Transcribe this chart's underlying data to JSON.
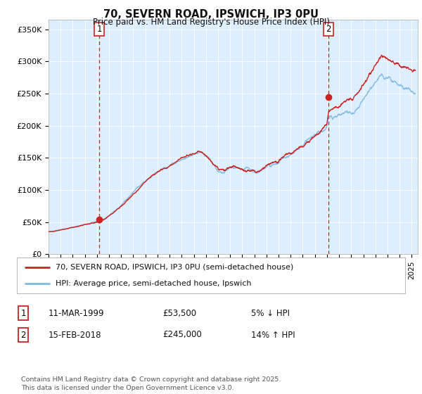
{
  "title": "70, SEVERN ROAD, IPSWICH, IP3 0PU",
  "subtitle": "Price paid vs. HM Land Registry's House Price Index (HPI)",
  "ylabel_ticks": [
    "£0",
    "£50K",
    "£100K",
    "£150K",
    "£200K",
    "£250K",
    "£300K",
    "£350K"
  ],
  "ytick_values": [
    0,
    50000,
    100000,
    150000,
    200000,
    250000,
    300000,
    350000
  ],
  "ylim": [
    0,
    365000
  ],
  "xlim_start": 1995.0,
  "xlim_end": 2025.5,
  "hpi_color": "#7db9e0",
  "price_color": "#cc2222",
  "marker1_year": 1999.19,
  "marker1_price": 53500,
  "marker2_year": 2018.12,
  "marker2_price": 245000,
  "legend_label1": "70, SEVERN ROAD, IPSWICH, IP3 0PU (semi-detached house)",
  "legend_label2": "HPI: Average price, semi-detached house, Ipswich",
  "table_row1": [
    "1",
    "11-MAR-1999",
    "£53,500",
    "5% ↓ HPI"
  ],
  "table_row2": [
    "2",
    "15-FEB-2018",
    "£245,000",
    "14% ↑ HPI"
  ],
  "footnote": "Contains HM Land Registry data © Crown copyright and database right 2025.\nThis data is licensed under the Open Government Licence v3.0.",
  "background_color": "#ffffff",
  "plot_background": "#ddeeff",
  "grid_color": "#ffffff"
}
